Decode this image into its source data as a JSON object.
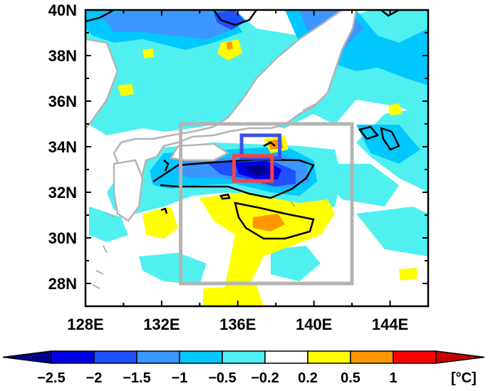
{
  "map": {
    "lat_labels": [
      "40N",
      "38N",
      "36N",
      "34N",
      "32N",
      "30N",
      "28N"
    ],
    "lon_labels": [
      "128E",
      "132E",
      "136E",
      "140E",
      "144E"
    ],
    "lat_range": [
      27,
      40
    ],
    "lon_range": [
      128,
      146
    ]
  },
  "boxes": [
    {
      "name": "gray-region-box",
      "lon": [
        133,
        142
      ],
      "lat": [
        28,
        35
      ],
      "color": "#b4b4b4"
    },
    {
      "name": "blue-region-box",
      "lon": [
        136.2,
        138.2
      ],
      "lat": [
        33.5,
        34.5
      ],
      "color": "#3c50e6"
    },
    {
      "name": "red-region-box",
      "lon": [
        135.8,
        137.8
      ],
      "lat": [
        32.5,
        33.6
      ],
      "color": "#f04646"
    }
  ],
  "colorbar": {
    "unit": "[°C]",
    "levels": [
      "−2.5",
      "−2",
      "−1.5",
      "−1",
      "−0.5",
      "−0.2",
      "0.2",
      "0.5",
      "1"
    ],
    "colors": [
      "#00008c",
      "#0000e6",
      "#1e50ff",
      "#3c96ff",
      "#00c8ff",
      "#50f0f0",
      "#ffffff",
      "#ffff00",
      "#ff9600",
      "#ff0000",
      "#c80000"
    ]
  }
}
